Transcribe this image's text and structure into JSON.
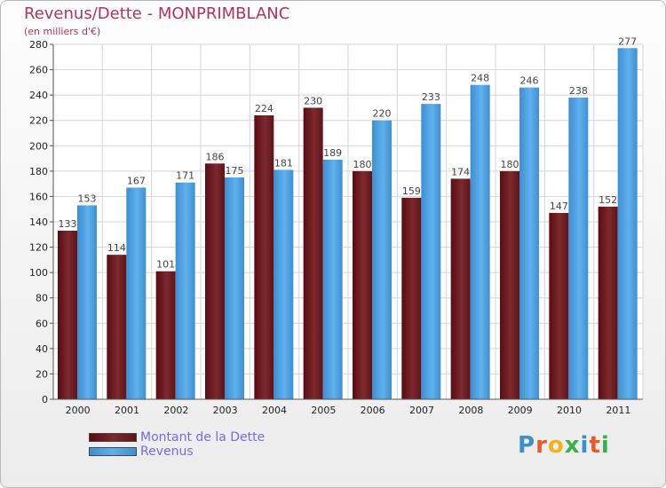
{
  "header": {
    "title": "Revenus/Dette - MONPRIMBLANC",
    "subtitle": "(en milliers d'€)"
  },
  "chart_data": {
    "type": "bar",
    "categories": [
      "2000",
      "2001",
      "2002",
      "2003",
      "2004",
      "2005",
      "2006",
      "2007",
      "2008",
      "2009",
      "2010",
      "2011"
    ],
    "series": [
      {
        "name": "Montant de la Dette",
        "color": "#6b1a1e",
        "values": [
          133,
          114,
          101,
          186,
          224,
          230,
          180,
          159,
          174,
          180,
          147,
          152
        ]
      },
      {
        "name": "Revenus",
        "color": "#4a9fe0",
        "values": [
          153,
          167,
          171,
          175,
          181,
          189,
          220,
          233,
          248,
          246,
          238,
          277
        ]
      }
    ],
    "ylim": [
      0,
      280
    ],
    "yticks": [
      0,
      20,
      40,
      60,
      80,
      100,
      120,
      140,
      160,
      180,
      200,
      220,
      240,
      260,
      280
    ],
    "grid": true,
    "legend_position": "bottom-left"
  },
  "legend": {
    "items": [
      {
        "label": "Montant de la Dette",
        "color": "#6b1a1e"
      },
      {
        "label": "Revenus",
        "color": "#4a9fe0"
      }
    ]
  },
  "logo": {
    "text": "Proxiti",
    "letters": [
      {
        "ch": "P",
        "color": "#3a8fd0"
      },
      {
        "ch": "r",
        "color": "#e85a2a"
      },
      {
        "ch": "o",
        "color": "#f2b21a"
      },
      {
        "ch": "x",
        "color": "#3ab04a"
      },
      {
        "ch": "i",
        "color": "#3a8fd0"
      },
      {
        "ch": "t",
        "color": "#e85a2a"
      },
      {
        "ch": "i",
        "color": "#3ab04a"
      }
    ]
  }
}
